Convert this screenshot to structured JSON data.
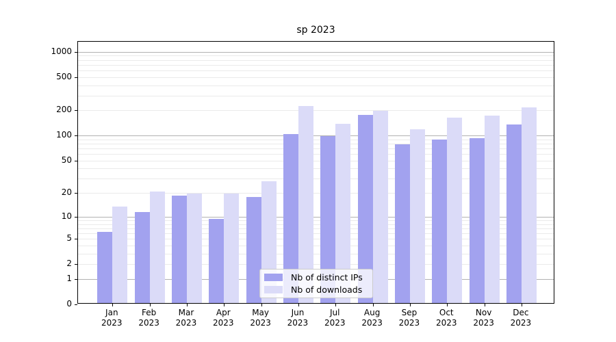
{
  "title": "sp 2023",
  "chart_data": {
    "type": "bar",
    "title": "sp 2023",
    "categories": [
      "Jan 2023",
      "Feb 2023",
      "Mar 2023",
      "Apr 2023",
      "May 2023",
      "Jun 2023",
      "Jul 2023",
      "Aug 2023",
      "Sep 2023",
      "Oct 2023",
      "Nov 2023",
      "Dec 2023"
    ],
    "series": [
      {
        "key": "ips",
        "name": "Nb of distinct IPs",
        "color": "#a2a2ef",
        "values": [
          6,
          11,
          18,
          9,
          17,
          100,
          95,
          170,
          75,
          86,
          89,
          132
        ]
      },
      {
        "key": "downloads",
        "name": "Nb of downloads",
        "color": "#dbdbf8",
        "values": [
          13,
          20,
          19,
          19,
          27,
          218,
          133,
          192,
          114,
          158,
          166,
          210
        ]
      }
    ],
    "xlabel": "",
    "ylabel": "",
    "yscale": "log1p",
    "ylim": [
      0,
      1300
    ],
    "yticks": [
      0,
      1,
      2,
      5,
      10,
      20,
      50,
      100,
      200,
      500,
      1000
    ],
    "grid": "on",
    "gridline_major_values": [
      1,
      10,
      100,
      1000
    ],
    "gridline_major_color": "#b1b1b1",
    "gridline_minor_color": "#eaeaea",
    "legend_position": "lower-center",
    "legend": {
      "entries": [
        "Nb of distinct IPs",
        "Nb of downloads"
      ]
    }
  }
}
